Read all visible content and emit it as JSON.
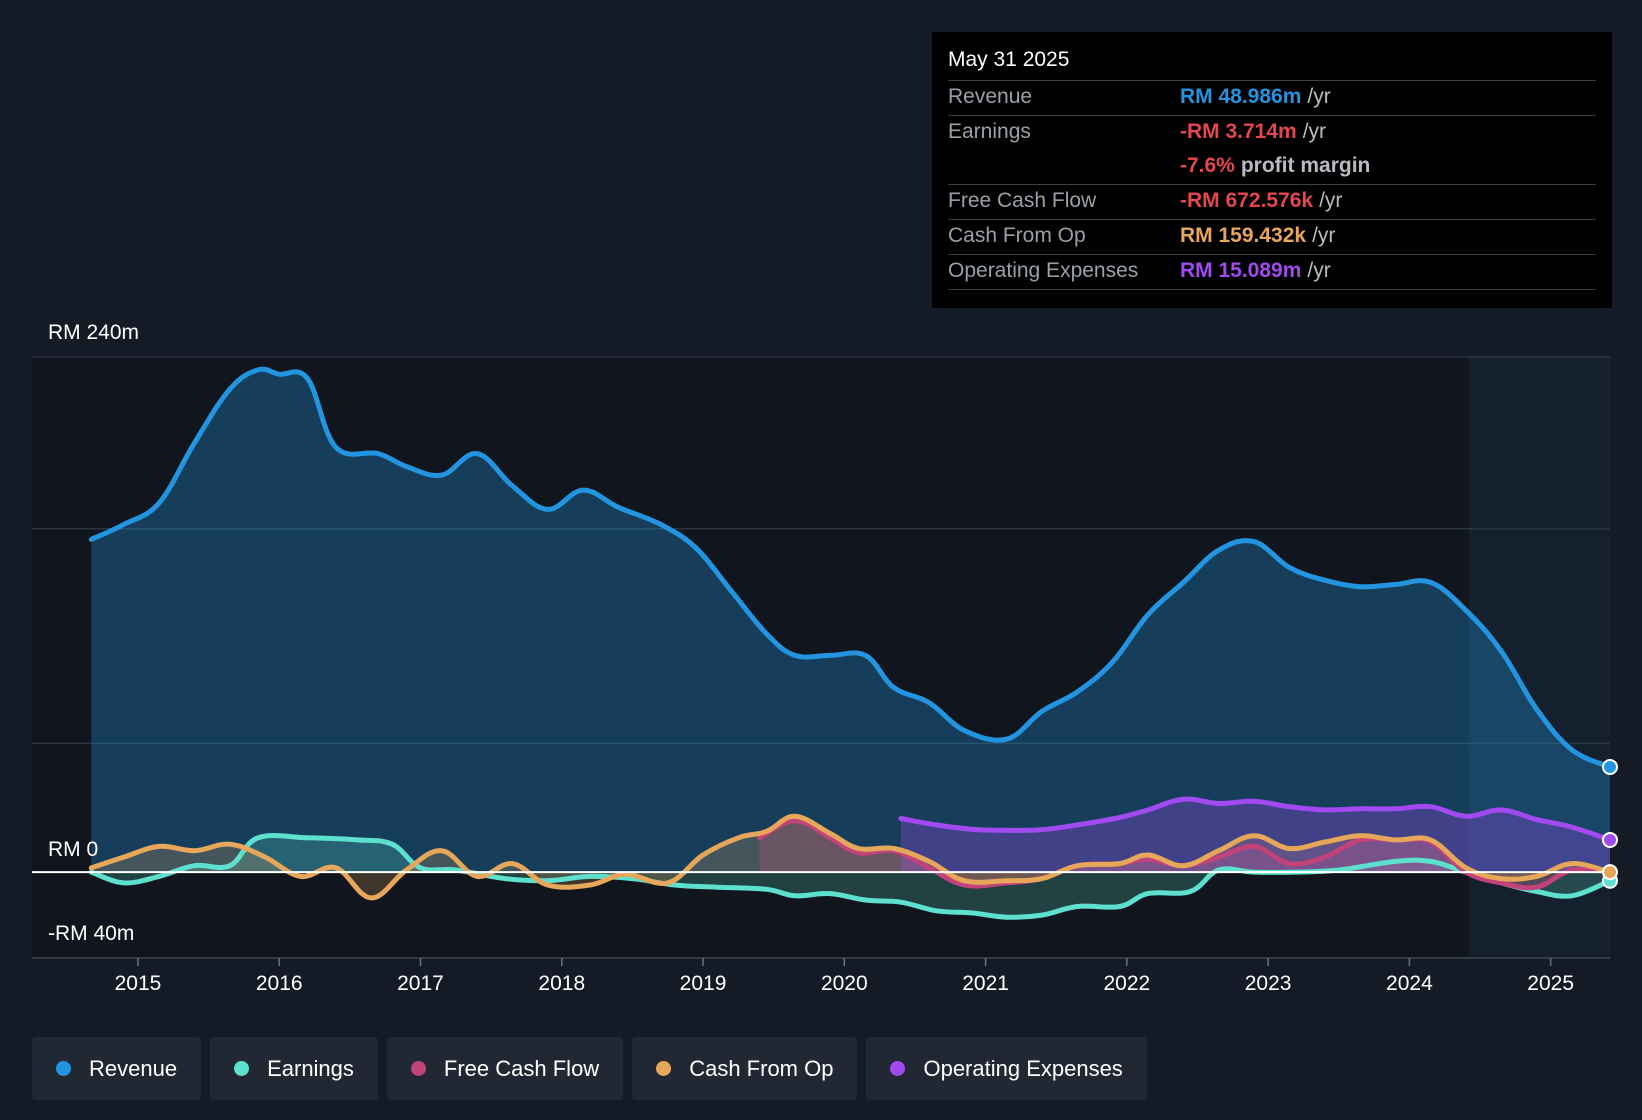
{
  "chart_data": {
    "type": "area",
    "title": "",
    "y_unit_prefix": "RM",
    "ylim": [
      -40,
      240
    ],
    "y_ticks": [
      240,
      0,
      -40
    ],
    "y_tick_labels": [
      "RM 240m",
      "RM 0",
      "-RM 40m"
    ],
    "x_ticks": [
      2015,
      2016,
      2017,
      2018,
      2019,
      2020,
      2021,
      2022,
      2023,
      2024,
      2025
    ],
    "x_tick_labels": [
      "2015",
      "2016",
      "2017",
      "2018",
      "2019",
      "2020",
      "2021",
      "2022",
      "2023",
      "2024",
      "2025"
    ],
    "xlim": [
      2014.25,
      2025.42
    ],
    "forecast_shade_start": 2024.42,
    "series": [
      {
        "name": "Revenue",
        "color": "#2394df",
        "x": [
          2014.67,
          2014.9,
          2015.15,
          2015.4,
          2015.65,
          2015.85,
          2016.0,
          2016.2,
          2016.4,
          2016.7,
          2016.9,
          2017.15,
          2017.4,
          2017.65,
          2017.9,
          2018.15,
          2018.4,
          2018.7,
          2018.95,
          2019.2,
          2019.45,
          2019.65,
          2019.9,
          2020.15,
          2020.35,
          2020.6,
          2020.85,
          2021.15,
          2021.4,
          2021.65,
          2021.9,
          2022.15,
          2022.4,
          2022.65,
          2022.9,
          2023.15,
          2023.4,
          2023.65,
          2023.9,
          2024.15,
          2024.4,
          2024.65,
          2024.9,
          2025.15,
          2025.42
        ],
        "values": [
          155,
          162,
          172,
          200,
          225,
          234,
          232,
          230,
          198,
          195,
          189,
          185,
          195,
          180,
          169,
          178,
          170,
          162,
          151,
          131,
          111,
          101,
          101,
          101,
          86,
          79,
          66,
          62,
          75,
          84,
          98,
          120,
          135,
          150,
          154,
          142,
          136,
          133,
          134,
          135,
          122,
          103,
          76,
          57,
          49
        ]
      },
      {
        "name": "Earnings",
        "color": "#5ee0cf",
        "x": [
          2014.67,
          2014.9,
          2015.15,
          2015.4,
          2015.65,
          2015.85,
          2016.2,
          2016.55,
          2016.8,
          2017.0,
          2017.25,
          2017.6,
          2017.9,
          2018.2,
          2018.5,
          2018.8,
          2019.1,
          2019.45,
          2019.65,
          2019.9,
          2020.15,
          2020.4,
          2020.65,
          2020.9,
          2021.15,
          2021.4,
          2021.65,
          2021.95,
          2022.15,
          2022.45,
          2022.65,
          2022.9,
          2023.2,
          2023.5,
          2023.9,
          2024.15,
          2024.4,
          2024.65,
          2024.9,
          2025.15,
          2025.42
        ],
        "values": [
          0,
          -5,
          -2,
          3,
          3,
          16,
          16,
          15,
          13,
          2,
          1,
          -3,
          -4,
          -2,
          -3,
          -6,
          -7,
          -8,
          -11,
          -10,
          -13,
          -14,
          -18,
          -19,
          -21,
          -20,
          -16,
          -16,
          -10,
          -9,
          1,
          0,
          0,
          1,
          5,
          5,
          0,
          -5,
          -9,
          -11,
          -4
        ]
      },
      {
        "name": "Free Cash Flow",
        "color": "#c2427a",
        "x": [
          2019.4,
          2019.65,
          2019.9,
          2020.1,
          2020.35,
          2020.6,
          2020.85,
          2021.15,
          2021.4,
          2021.65,
          2021.95,
          2022.15,
          2022.4,
          2022.65,
          2022.9,
          2023.15,
          2023.4,
          2023.65,
          2023.9,
          2024.15,
          2024.4,
          2024.65,
          2024.9,
          2025.15,
          2025.42
        ],
        "values": [
          16,
          24,
          16,
          9,
          10,
          2,
          -6,
          -5,
          -3,
          3,
          4,
          6,
          3,
          7,
          12,
          4,
          7,
          15,
          15,
          14,
          0,
          -5,
          -7,
          1,
          0
        ]
      },
      {
        "name": "Cash From Op",
        "color": "#e7a75a",
        "x": [
          2014.67,
          2014.9,
          2015.15,
          2015.4,
          2015.65,
          2015.9,
          2016.15,
          2016.4,
          2016.65,
          2016.9,
          2017.15,
          2017.4,
          2017.65,
          2017.9,
          2018.2,
          2018.45,
          2018.75,
          2019.0,
          2019.25,
          2019.45,
          2019.65,
          2019.9,
          2020.1,
          2020.35,
          2020.6,
          2020.85,
          2021.15,
          2021.4,
          2021.65,
          2021.95,
          2022.15,
          2022.4,
          2022.65,
          2022.9,
          2023.15,
          2023.4,
          2023.65,
          2023.9,
          2024.15,
          2024.4,
          2024.65,
          2024.9,
          2025.15,
          2025.42
        ],
        "values": [
          2,
          7,
          12,
          10,
          13,
          7,
          -2,
          2,
          -12,
          1,
          10,
          -2,
          4,
          -6,
          -6,
          -1,
          -5,
          8,
          16,
          19,
          26,
          18,
          11,
          11,
          5,
          -4,
          -4,
          -3,
          3,
          4,
          8,
          3,
          10,
          17,
          11,
          14,
          17,
          15,
          15,
          2,
          -3,
          -2,
          4,
          0
        ]
      },
      {
        "name": "Operating Expenses",
        "color": "#a14af0",
        "x": [
          2020.4,
          2020.65,
          2020.9,
          2021.15,
          2021.4,
          2021.65,
          2021.95,
          2022.15,
          2022.4,
          2022.65,
          2022.9,
          2023.15,
          2023.4,
          2023.65,
          2023.9,
          2024.15,
          2024.4,
          2024.65,
          2024.9,
          2025.15,
          2025.42
        ],
        "values": [
          25,
          22,
          20,
          19.5,
          19.8,
          22,
          25.5,
          29,
          34,
          32,
          33,
          30.5,
          29,
          29.5,
          29.5,
          30.5,
          26,
          29,
          24.5,
          21,
          15
        ]
      }
    ],
    "end_markers": [
      "Revenue",
      "Earnings",
      "Operating Expenses",
      "Cash From Op"
    ]
  },
  "tooltip": {
    "date": "May 31 2025",
    "unit_suffix": "/yr",
    "rows": [
      {
        "label": "Revenue",
        "value": "RM 48.986m",
        "unit": "/yr",
        "color": "#2394df"
      },
      {
        "label": "Earnings",
        "value": "-RM 3.714m",
        "unit": "/yr",
        "color": "#e5474f"
      },
      {
        "label": "",
        "value": "-7.6%",
        "unit": "profit margin",
        "color": "#e5474f"
      },
      {
        "label": "Free Cash Flow",
        "value": "-RM 672.576k",
        "unit": "/yr",
        "color": "#e5474f"
      },
      {
        "label": "Cash From Op",
        "value": "RM 159.432k",
        "unit": "/yr",
        "color": "#e7a75a"
      },
      {
        "label": "Operating Expenses",
        "value": "RM 15.089m",
        "unit": "/yr",
        "color": "#a14af0"
      }
    ]
  },
  "legend": [
    {
      "label": "Revenue",
      "color": "#2394df"
    },
    {
      "label": "Earnings",
      "color": "#5ee0cf"
    },
    {
      "label": "Free Cash Flow",
      "color": "#c2427a"
    },
    {
      "label": "Cash From Op",
      "color": "#e7a75a"
    },
    {
      "label": "Operating Expenses",
      "color": "#a14af0"
    }
  ]
}
